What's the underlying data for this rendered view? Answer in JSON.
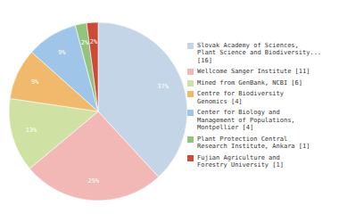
{
  "chart_data": {
    "type": "pie",
    "categories": [
      "Slovak Academy of Sciences,\nPlant Science and Biodiversity...\n[16]",
      "Wellcome Sanger Institute [11]",
      "Mined from GenBank, NCBI [6]",
      "Centre for Biodiversity\nGenomics [4]",
      "Center for Biology and\nManagement of Populations,\nMontpellier [4]",
      "Plant Protection Central\nResearch Institute, Ankara [1]",
      "Fujian Agriculture and\nForestry University [1]"
    ],
    "values": [
      37,
      25,
      13,
      9,
      9,
      2,
      2
    ],
    "value_labels": [
      "37%",
      "25%",
      "13%",
      "9%",
      "9%",
      "2%",
      "2%"
    ],
    "colors": [
      "#c5d5e8",
      "#f2b8b5",
      "#cfe2a3",
      "#f0b96b",
      "#9fc5e8",
      "#93c47d",
      "#cc4b37"
    ],
    "data_labels": true,
    "legend": "right"
  }
}
